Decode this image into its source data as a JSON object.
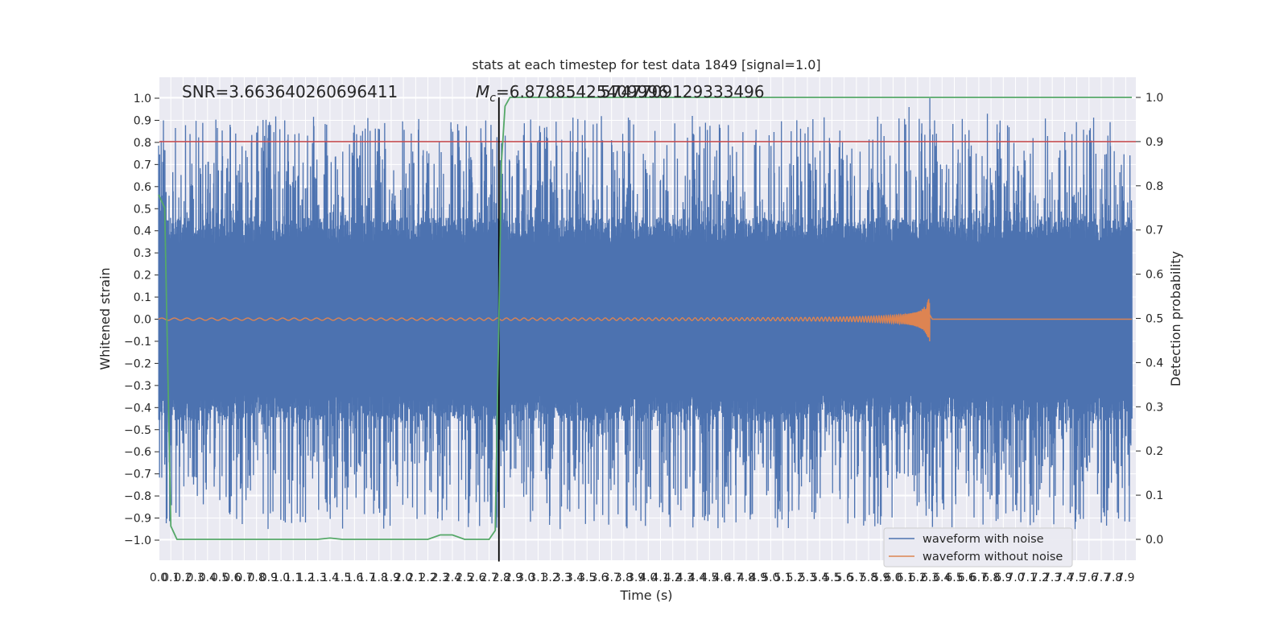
{
  "chart_data": {
    "type": "line",
    "title": "stats at each timestep for test data 1849 [signal=1.0]",
    "xlabel": "Time (s)",
    "ylabel": "Whitened strain",
    "ylabel_right": "Detection probability",
    "xlim": [
      0,
      7.95
    ],
    "ylim": [
      -1.1,
      1.1
    ],
    "ylim_right": [
      -0.05,
      1.05
    ],
    "grid": true,
    "legend_placement": "lower-right",
    "x_ticks": [
      "0.0",
      "0.1",
      "0.2",
      "0.3",
      "0.4",
      "0.5",
      "0.6",
      "0.7",
      "0.8",
      "0.9",
      "1.0",
      "1.1",
      "1.2",
      "1.3",
      "1.4",
      "1.5",
      "1.6",
      "1.7",
      "1.8",
      "1.9",
      "2.0",
      "2.1",
      "2.2",
      "2.3",
      "2.4",
      "2.5",
      "2.6",
      "2.7",
      "2.8",
      "2.9",
      "3.0",
      "3.1",
      "3.2",
      "3.3",
      "3.4",
      "3.5",
      "3.6",
      "3.7",
      "3.8",
      "3.9",
      "4.0",
      "4.1",
      "4.2",
      "4.3",
      "4.4",
      "4.5",
      "4.6",
      "4.7",
      "4.8",
      "4.9",
      "5.0",
      "5.1",
      "5.2",
      "5.3",
      "5.4",
      "5.5",
      "5.6",
      "5.7",
      "5.8",
      "5.9",
      "6.0",
      "6.1",
      "6.2",
      "6.3",
      "6.4",
      "6.5",
      "6.6",
      "6.7",
      "6.8",
      "6.9",
      "7.0",
      "7.1",
      "7.2",
      "7.3",
      "7.4",
      "7.5",
      "7.6",
      "7.7",
      "7.8",
      "7.9"
    ],
    "y_ticks_left": [
      "1.0",
      "0.9",
      "0.8",
      "0.7",
      "0.6",
      "0.5",
      "0.4",
      "0.3",
      "0.2",
      "0.1",
      "0.0",
      "−0.1",
      "−0.2",
      "−0.3",
      "−0.4",
      "−0.5",
      "−0.6",
      "−0.7",
      "−0.8",
      "−0.9",
      "−1.0"
    ],
    "y_ticks_right": [
      "1.0",
      "0.9",
      "0.8",
      "0.7",
      "0.6",
      "0.5",
      "0.4",
      "0.3",
      "0.2",
      "0.1",
      "0.0"
    ],
    "series": [
      {
        "name": "waveform with noise",
        "axis": "left",
        "color": "#4c72b0",
        "kind": "noise",
        "envelope": {
          "core_amplitude": 0.42,
          "peak_max": 0.92,
          "trough_min": -0.95
        }
      },
      {
        "name": "waveform without noise",
        "axis": "left",
        "color": "#dd8452",
        "kind": "chirp",
        "x_start": 0.0,
        "x_merger": 6.3,
        "amplitude_start": 0.005,
        "amplitude_peak": 0.12
      },
      {
        "name": "",
        "axis": "right",
        "color": "#55a868",
        "kind": "probability",
        "x": [
          0.0,
          0.05,
          0.1,
          0.15,
          0.2,
          1.2,
          1.3,
          1.4,
          1.5,
          1.6,
          1.7,
          2.2,
          2.3,
          2.4,
          2.5,
          2.6,
          2.7,
          2.75,
          2.78,
          2.8,
          2.83,
          2.87,
          2.92,
          7.95
        ],
        "values": [
          0.78,
          0.75,
          0.03,
          0.0,
          0.0,
          0.0,
          0.0,
          0.003,
          0.0,
          0.0,
          0.0,
          0.0,
          0.01,
          0.01,
          0.0,
          0.0,
          0.0,
          0.02,
          0.5,
          0.85,
          0.98,
          1.0,
          1.0,
          1.0
        ]
      }
    ],
    "threshold_line": {
      "axis": "right",
      "value": 0.9,
      "color": "#c44e52"
    },
    "event_marker": {
      "x": 2.78,
      "y_range": [
        -0.05,
        1.0
      ],
      "color": "#000000"
    },
    "annotations": {
      "snr": "SNR=3.663640260696411",
      "mc_prefix": "M",
      "mc_subscript": "c",
      "mc_text": "=6.87885425409996",
      "extra_text": "5747709129333496"
    }
  }
}
